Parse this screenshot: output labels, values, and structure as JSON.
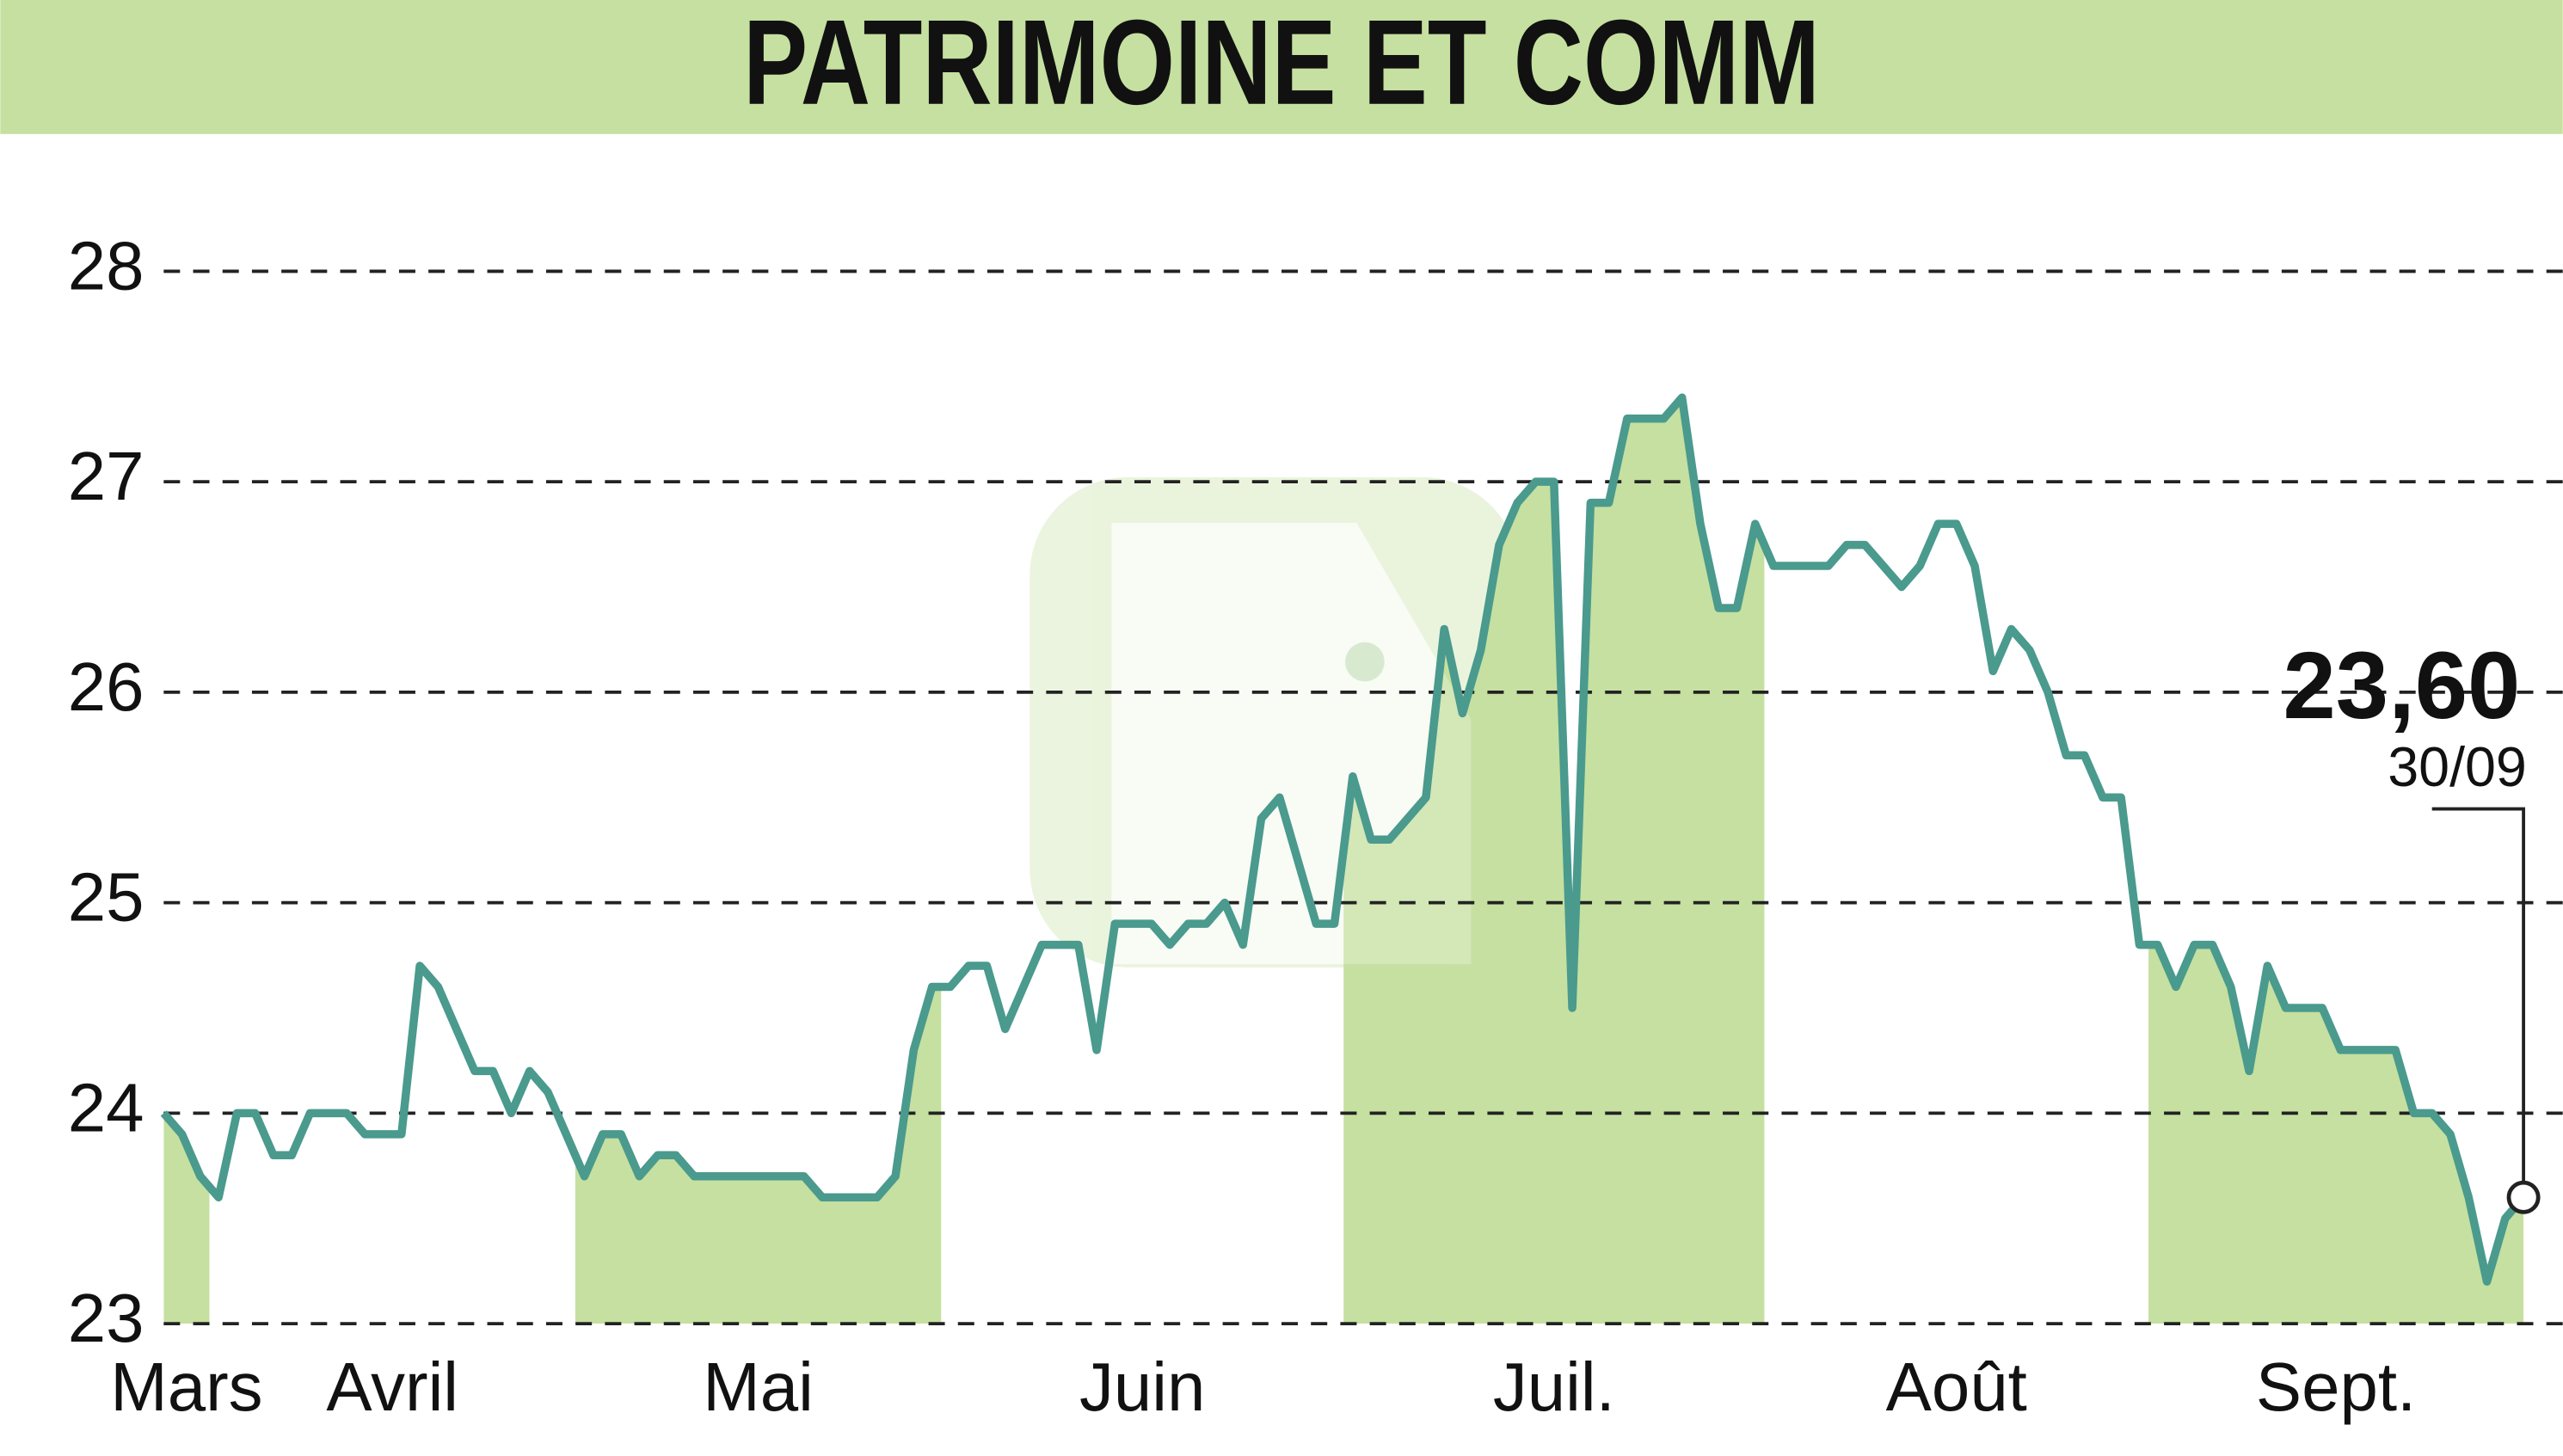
{
  "chart_data": {
    "type": "line",
    "title": "PATRIMOINE ET COMM",
    "series": [
      {
        "name": "PATRIMOINE ET COMM",
        "color": "#4a9a8e",
        "values": [
          24.0,
          23.9,
          23.7,
          23.6,
          24.0,
          24.0,
          23.8,
          23.8,
          24.0,
          24.0,
          24.0,
          23.9,
          23.9,
          23.9,
          24.7,
          24.6,
          24.4,
          24.2,
          24.2,
          24.0,
          24.2,
          24.1,
          23.9,
          23.7,
          23.9,
          23.9,
          23.7,
          23.8,
          23.8,
          23.7,
          23.7,
          23.7,
          23.7,
          23.7,
          23.7,
          23.7,
          23.6,
          23.6,
          23.6,
          23.6,
          23.7,
          24.3,
          24.6,
          24.6,
          24.7,
          24.7,
          24.4,
          24.6,
          24.8,
          24.8,
          24.8,
          24.3,
          24.9,
          24.9,
          24.9,
          24.8,
          24.9,
          24.9,
          25.0,
          24.8,
          25.4,
          25.5,
          25.2,
          24.9,
          24.9,
          25.6,
          25.3,
          25.3,
          25.4,
          25.5,
          26.3,
          25.9,
          26.2,
          26.7,
          26.9,
          27.0,
          27.0,
          24.5,
          26.9,
          26.9,
          27.3,
          27.3,
          27.3,
          27.4,
          26.8,
          26.4,
          26.4,
          26.8,
          26.6,
          26.6,
          26.6,
          26.6,
          26.7,
          26.7,
          26.6,
          26.5,
          26.6,
          26.8,
          26.8,
          26.6,
          26.1,
          26.3,
          26.2,
          26.0,
          25.7,
          25.7,
          25.5,
          25.5,
          24.8,
          24.8,
          24.6,
          24.8,
          24.8,
          24.6,
          24.2,
          24.7,
          24.5,
          24.5,
          24.5,
          24.3,
          24.3,
          24.3,
          24.3,
          24.0,
          24.0,
          23.9,
          23.6,
          23.2,
          23.5,
          23.6
        ]
      }
    ],
    "xlim": [
      0,
      129
    ],
    "xticks": [
      {
        "value": 0,
        "label": "Mars"
      },
      {
        "value": 2.5,
        "label": "Avril"
      },
      {
        "value": 22.5,
        "label": "Mai"
      },
      {
        "value": 42.5,
        "label": "Juin"
      },
      {
        "value": 64.5,
        "label": "Juil."
      },
      {
        "value": 87.5,
        "label": "Août"
      },
      {
        "value": 108.5,
        "label": "Sept."
      }
    ],
    "ylim": [
      23,
      28
    ],
    "yticks": [
      23,
      24,
      25,
      26,
      27,
      28
    ],
    "grid": true,
    "shade_color": "#c5e0a0",
    "annotation": {
      "label": "23,60",
      "date": "30/09"
    }
  }
}
